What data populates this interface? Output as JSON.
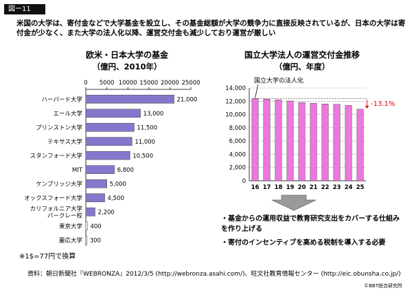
{
  "figure_label": "図ー11",
  "intro_text": "米国の大学は、寄付金などで大学基金を設立し、その基金総額が大学の競争力に直接反映されているが、日本の大学は寄付金が少なく、また大学の法人化以降、運営交付金も減少しており運営が厳しい",
  "chart_data": [
    {
      "type": "bar",
      "orientation": "horizontal",
      "title": "欧米・日本大学の基金",
      "subtitle": "（億円、2010年）",
      "categories": [
        "ハーバード大学",
        "エール大学",
        "プリンストン大学",
        "テキサス大学",
        "スタンフォード大学",
        "MIT",
        "ケンブリッジ大学",
        "オックスフォード大学",
        "カリフォルニア大学 バークレー校",
        "東京大学",
        "慶応大学"
      ],
      "values": [
        21000,
        13000,
        11500,
        11000,
        10500,
        6800,
        5000,
        4500,
        2200,
        400,
        300
      ],
      "value_labels": [
        "21,000",
        "13,000",
        "11,500",
        "11,000",
        "10,500",
        "6,800",
        "5,000",
        "4,500",
        "2,200",
        "400",
        "300"
      ],
      "xticks": [
        "0",
        "5000",
        "10000",
        "15000",
        "20000",
        "25000"
      ],
      "xlim": [
        0,
        25000
      ],
      "bar_color": "#8577cc",
      "highlight_color": "#ffffff"
    },
    {
      "type": "bar",
      "title": "国立大学法人の運営交付金推移",
      "subtitle": "（億円、年度）",
      "categories": [
        "16",
        "17",
        "18",
        "19",
        "20",
        "21",
        "22",
        "23",
        "24",
        "25"
      ],
      "values": [
        12415,
        12317,
        12214,
        12044,
        11813,
        11695,
        11585,
        11528,
        11366,
        10792
      ],
      "yticks": [
        "0",
        "2,000",
        "4,000",
        "6,000",
        "8,000",
        "10,000",
        "12,000",
        "14,000"
      ],
      "ylim": [
        0,
        14000
      ],
      "annotation": "国立大学の法人化",
      "change_label": "-13.1%",
      "bar_color": "#ee77dd",
      "change_color": "#e00000"
    }
  ],
  "note": "※1$=77円で換算",
  "bullets": [
    "・基金からの運用収益で教育研究支出をカバーする仕組みを作り上げる",
    "・寄付のインセンティブを高める税制を導入する必要"
  ],
  "source": "資料：朝日新聞社『WEBRONZA』2012/3/5 (http://webronza.asahi.com/)、旺文社教育情報センター (http://eic.obunsha.co.jp/)",
  "copyright": "©BBT総合研究所"
}
